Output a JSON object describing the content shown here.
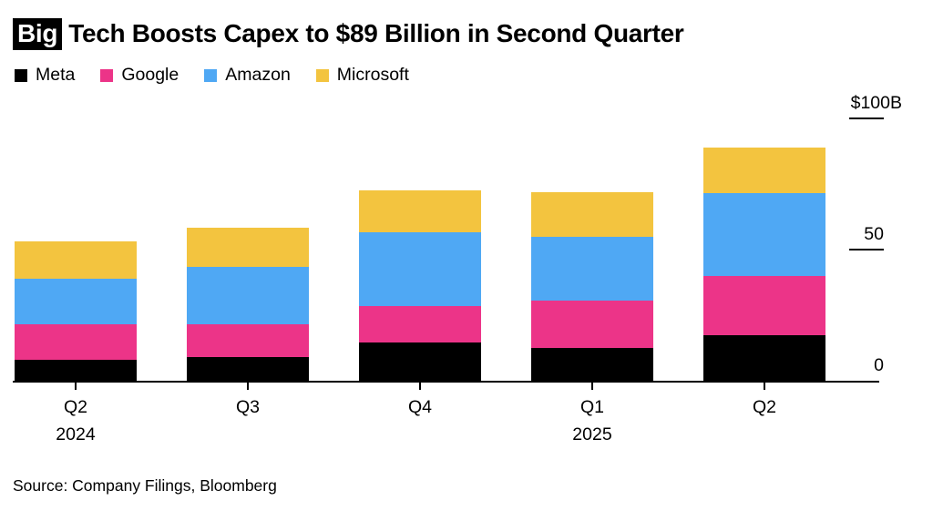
{
  "title": {
    "highlight": "Big",
    "rest": "Tech Boosts Capex to $89 Billion in Second Quarter"
  },
  "source": "Source: Company Filings, Bloomberg",
  "colors": {
    "background": "#FFFFFF",
    "axis": "#000000",
    "text": "#000000",
    "meta": "#000000",
    "google": "#EC3488",
    "amazon": "#4FA8F4",
    "microsoft": "#F3C43F"
  },
  "chart_data": {
    "type": "bar",
    "stacked": true,
    "title": "Big Tech Boosts Capex to $89 Billion in Second Quarter",
    "units": "USD billions",
    "ylim": [
      0,
      100
    ],
    "grid": false,
    "legend_position": "top-left",
    "legend": [
      "Meta",
      "Google",
      "Amazon",
      "Microsoft"
    ],
    "y_ticks": [
      {
        "label": "$100B",
        "value": 100
      },
      {
        "label": "50",
        "value": 50
      },
      {
        "label": "0",
        "value": 0
      }
    ],
    "categories": [
      "Q2",
      "Q3",
      "Q4",
      "Q1",
      "Q2"
    ],
    "year_labels": [
      {
        "index": 0,
        "label": "2024"
      },
      {
        "index": 3,
        "label": "2025"
      }
    ],
    "series": [
      {
        "name": "Meta",
        "color": "#000000",
        "values": [
          8,
          9,
          14.5,
          12.5,
          17.5
        ]
      },
      {
        "name": "Google",
        "color": "#EC3488",
        "values": [
          13.5,
          12.5,
          14,
          18,
          22.5
        ]
      },
      {
        "name": "Amazon",
        "color": "#4FA8F4",
        "values": [
          17.5,
          22,
          28,
          24.5,
          31.5
        ]
      },
      {
        "name": "Microsoft",
        "color": "#F3C43F",
        "values": [
          14,
          15,
          16,
          17,
          17.5
        ]
      }
    ]
  }
}
